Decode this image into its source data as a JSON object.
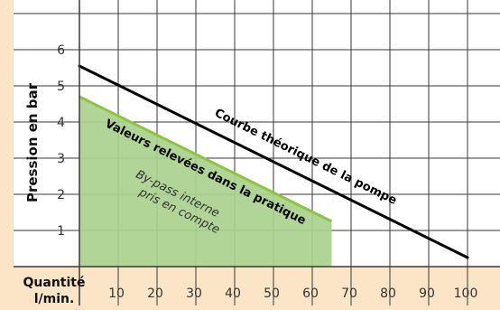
{
  "chart_data": {
    "type": "area",
    "ylabel": "Pression en bar",
    "xlabel": "Quantité l/min.",
    "xlabel_lines": [
      "Quantité",
      "l/min."
    ],
    "xlim": [
      -10,
      110
    ],
    "ylim": [
      0,
      7
    ],
    "x_ticks": [
      10,
      20,
      30,
      40,
      50,
      60,
      70,
      80,
      90,
      100
    ],
    "y_ticks": [
      1,
      2,
      3,
      4,
      5,
      6
    ],
    "grid": true,
    "series": [
      {
        "name": "Courbe théorique de la pompe",
        "kind": "line",
        "color": "#000000",
        "points": [
          [
            0,
            5.55
          ],
          [
            100,
            0.25
          ]
        ]
      },
      {
        "name": "Valeurs relevées dans la pratique",
        "kind": "area",
        "color": "#8cc63f",
        "fill": "#a9d18e",
        "points": [
          [
            0,
            4.7
          ],
          [
            65,
            1.25
          ]
        ]
      }
    ],
    "annotations": [
      {
        "text": "Courbe théorique de la pompe",
        "series": 0
      },
      {
        "text": "Valeurs relevées dans la pratique",
        "series": 1
      },
      {
        "text_lines": [
          "By-pass interne",
          "pris en compte"
        ]
      }
    ]
  },
  "colors": {
    "background": "#fce4c7",
    "plot": "#ffffff",
    "grid": "#3a3a3a",
    "area_fill": "#a9d18e",
    "area_edge": "#8cc63f"
  }
}
